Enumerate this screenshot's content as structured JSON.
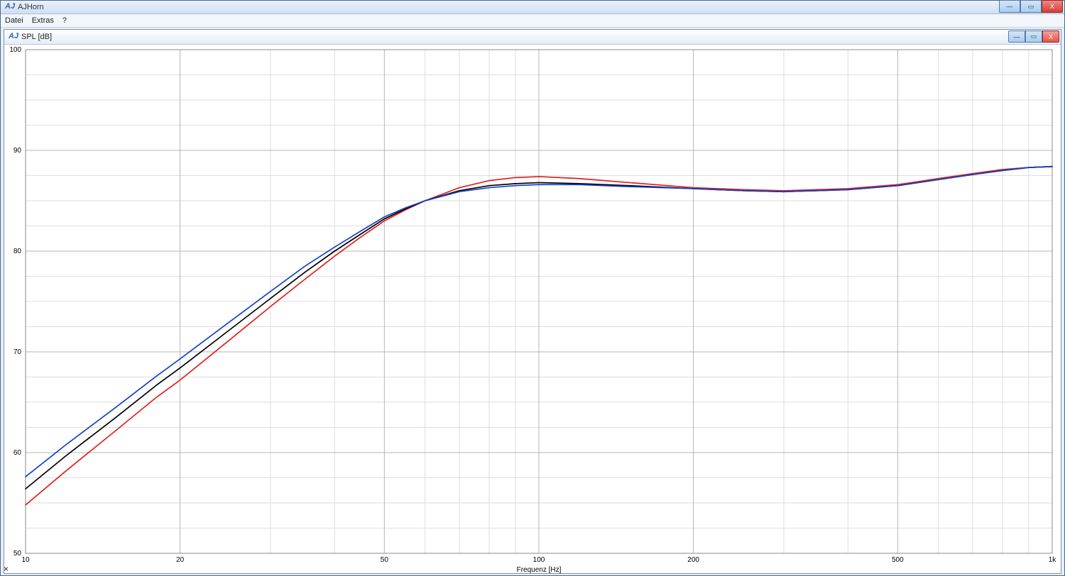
{
  "app": {
    "title": "AJHorn",
    "icon_glyph": "AJ"
  },
  "menu": {
    "items": [
      "Datei",
      "Extras",
      "?"
    ]
  },
  "outer_controls": {
    "minimize": "—",
    "maximize": "▭",
    "close": "X"
  },
  "inner_window": {
    "title": "SPL [dB]",
    "icon_glyph": "AJ",
    "controls": {
      "minimize": "—",
      "maximize": "▭",
      "close": "X"
    }
  },
  "status": {
    "close_glyph": "×"
  },
  "chart": {
    "type": "line",
    "x_axis": {
      "label": "Frequenz [Hz]",
      "scale": "log",
      "min": 10,
      "max": 1000,
      "tick_values": [
        10,
        20,
        50,
        100,
        200,
        500,
        1000
      ],
      "tick_labels": [
        "10",
        "20",
        "50",
        "100",
        "200",
        "500",
        "1k"
      ],
      "minor_decades": true,
      "label_fontsize": 10,
      "tick_fontsize": 10
    },
    "y_axis": {
      "label": "",
      "scale": "linear",
      "min": 50,
      "max": 100,
      "tick_step": 10,
      "minor_step": 2.5,
      "tick_fontsize": 10
    },
    "grid": {
      "major_color": "#b5b5b5",
      "minor_color": "#dedede",
      "border_color": "#888888"
    },
    "background_color": "#ffffff",
    "line_width": 1.7,
    "series": [
      {
        "name": "red",
        "color": "#e11f1f",
        "points": [
          [
            10,
            54.8
          ],
          [
            12,
            58.2
          ],
          [
            15,
            62.2
          ],
          [
            18,
            65.5
          ],
          [
            20,
            67.2
          ],
          [
            25,
            71.2
          ],
          [
            30,
            74.5
          ],
          [
            35,
            77.2
          ],
          [
            40,
            79.5
          ],
          [
            45,
            81.4
          ],
          [
            50,
            83.0
          ],
          [
            55,
            84.1
          ],
          [
            60,
            85.0
          ],
          [
            70,
            86.3
          ],
          [
            80,
            87.0
          ],
          [
            90,
            87.3
          ],
          [
            100,
            87.4
          ],
          [
            120,
            87.2
          ],
          [
            150,
            86.8
          ],
          [
            200,
            86.3
          ],
          [
            250,
            86.1
          ],
          [
            300,
            86.0
          ],
          [
            400,
            86.2
          ],
          [
            500,
            86.6
          ],
          [
            600,
            87.2
          ],
          [
            700,
            87.7
          ],
          [
            800,
            88.1
          ],
          [
            900,
            88.3
          ],
          [
            1000,
            88.4
          ]
        ]
      },
      {
        "name": "black",
        "color": "#000000",
        "points": [
          [
            10,
            56.4
          ],
          [
            12,
            59.7
          ],
          [
            15,
            63.5
          ],
          [
            18,
            66.7
          ],
          [
            20,
            68.4
          ],
          [
            25,
            72.2
          ],
          [
            30,
            75.3
          ],
          [
            35,
            77.9
          ],
          [
            40,
            80.0
          ],
          [
            45,
            81.7
          ],
          [
            50,
            83.2
          ],
          [
            55,
            84.2
          ],
          [
            60,
            85.0
          ],
          [
            70,
            86.0
          ],
          [
            80,
            86.5
          ],
          [
            90,
            86.7
          ],
          [
            100,
            86.8
          ],
          [
            120,
            86.7
          ],
          [
            150,
            86.5
          ],
          [
            200,
            86.2
          ],
          [
            250,
            86.0
          ],
          [
            300,
            85.9
          ],
          [
            400,
            86.1
          ],
          [
            500,
            86.5
          ],
          [
            600,
            87.1
          ],
          [
            700,
            87.6
          ],
          [
            800,
            88.0
          ],
          [
            900,
            88.3
          ],
          [
            1000,
            88.4
          ]
        ]
      },
      {
        "name": "blue",
        "color": "#1442c8",
        "points": [
          [
            10,
            57.6
          ],
          [
            12,
            60.8
          ],
          [
            15,
            64.5
          ],
          [
            18,
            67.6
          ],
          [
            20,
            69.3
          ],
          [
            25,
            73.0
          ],
          [
            30,
            76.0
          ],
          [
            35,
            78.5
          ],
          [
            40,
            80.4
          ],
          [
            45,
            82.0
          ],
          [
            50,
            83.4
          ],
          [
            55,
            84.3
          ],
          [
            60,
            85.0
          ],
          [
            70,
            85.9
          ],
          [
            80,
            86.3
          ],
          [
            90,
            86.5
          ],
          [
            100,
            86.6
          ],
          [
            120,
            86.6
          ],
          [
            150,
            86.4
          ],
          [
            200,
            86.2
          ],
          [
            250,
            86.0
          ],
          [
            300,
            85.9
          ],
          [
            400,
            86.1
          ],
          [
            500,
            86.5
          ],
          [
            600,
            87.1
          ],
          [
            700,
            87.6
          ],
          [
            800,
            88.0
          ],
          [
            900,
            88.3
          ],
          [
            1000,
            88.4
          ]
        ]
      }
    ]
  }
}
